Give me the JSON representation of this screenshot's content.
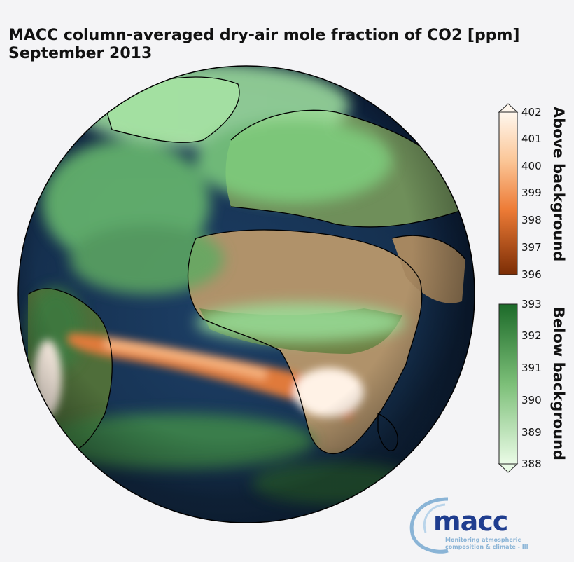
{
  "title": {
    "line1": "MACC column-averaged dry-air mole fraction of CO2 [ppm]",
    "line2": "September 2013"
  },
  "colorbar_above": {
    "label": "Above background",
    "ticks": [
      "402",
      "401",
      "400",
      "399",
      "398",
      "397",
      "396"
    ],
    "colors": [
      "#fff7ee",
      "#fdd4ad",
      "#f9a76a",
      "#ed7b36",
      "#d55410",
      "#a53f08",
      "#7b2d05"
    ]
  },
  "colorbar_below": {
    "label": "Below background",
    "ticks": [
      "393",
      "392",
      "391",
      "390",
      "389",
      "388"
    ],
    "colors": [
      "#1c6a29",
      "#3d8f45",
      "#6fb56c",
      "#a3d59d",
      "#cfeec9",
      "#eafbe6"
    ]
  },
  "logo": {
    "name": "macc",
    "subtitle_line1": "Monitoring atmospheric",
    "subtitle_line2": "composition & climate - III"
  },
  "map": {
    "projection": "orthographic",
    "colors": {
      "ocean_deep": "#0a1a33",
      "ocean": "#1d3f66",
      "land_desert": "#b0926a",
      "land_green": "#4f6e3a",
      "plume_green": "#86d68f",
      "plume_orange": "#e07a3a",
      "plume_hot": "#fff2e6",
      "coastline": "#000000"
    }
  }
}
